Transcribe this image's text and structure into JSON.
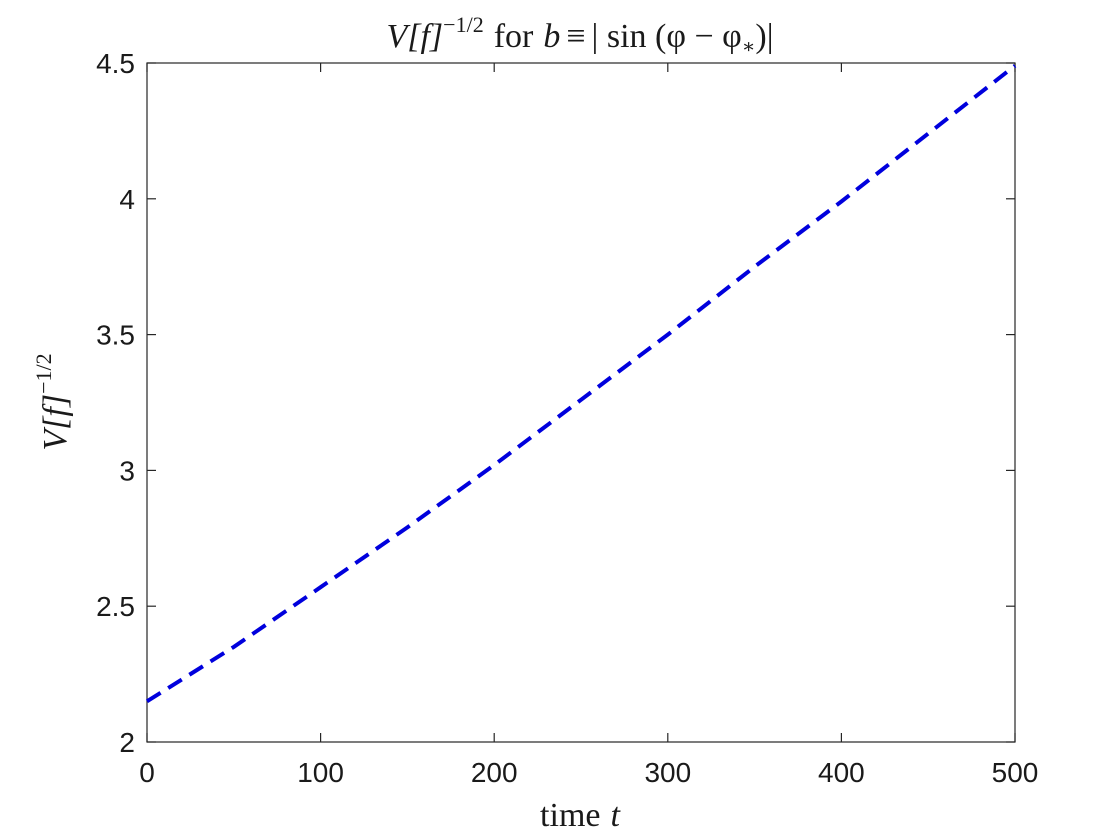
{
  "chart_data": {
    "type": "line",
    "title": "V[f]^{-1/2} for b ≡ |sin(φ − φ*)|",
    "xlabel": "time t",
    "ylabel": "V[f]^{-1/2}",
    "xlim": [
      0,
      500
    ],
    "ylim": [
      2,
      4.5
    ],
    "xticks": [
      "0",
      "100",
      "200",
      "300",
      "400",
      "500"
    ],
    "yticks": [
      "2",
      "2.5",
      "3",
      "3.5",
      "4",
      "4.5"
    ],
    "grid": false,
    "legend": "none",
    "series": [
      {
        "color": "#0000dd",
        "line_style": "dashed",
        "x": [
          0,
          50,
          100,
          150,
          200,
          250,
          300,
          350,
          400,
          450,
          500
        ],
        "y": [
          2.15,
          2.35,
          2.57,
          2.79,
          3.02,
          3.26,
          3.5,
          3.75,
          3.99,
          4.24,
          4.49
        ]
      }
    ]
  },
  "title_parts": {
    "v": "V",
    "bracket": "[f]",
    "exp": "−1/2",
    "for": "for",
    "b": "b",
    "equiv": "≡",
    "sin_expr": "| sin (φ − φ",
    "star": "∗",
    "close": ")|"
  },
  "ylabel_parts": {
    "base": "V[f]",
    "exp": "−1/2"
  },
  "xlabel_parts": {
    "word": "time",
    "var": "t"
  }
}
